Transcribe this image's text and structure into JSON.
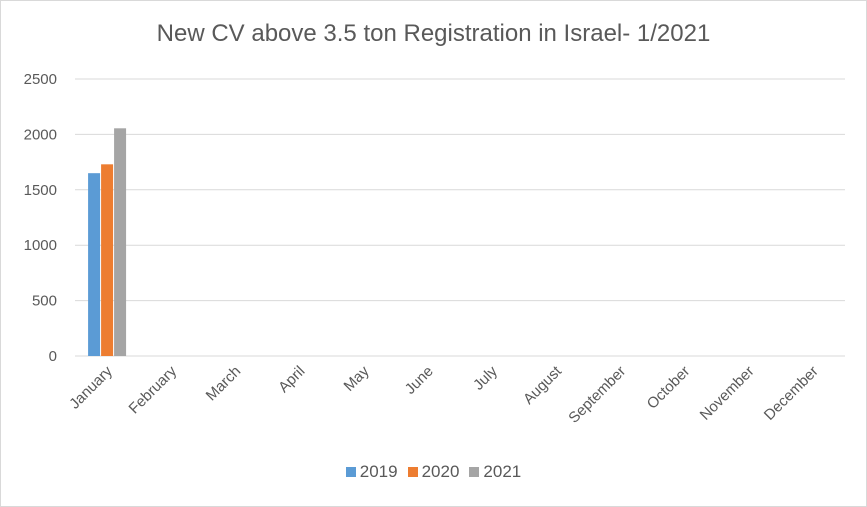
{
  "chart_data": {
    "type": "bar",
    "title": "New CV above 3.5 ton Registration in Israel- 1/2021",
    "xlabel": "",
    "ylabel": "",
    "categories": [
      "January",
      "February",
      "March",
      "April",
      "May",
      "June",
      "July",
      "August",
      "September",
      "October",
      "November",
      "December"
    ],
    "yticks": [
      "0",
      "500",
      "1000",
      "1500",
      "2000",
      "2500"
    ],
    "ylim": [
      0,
      2500
    ],
    "grid": true,
    "legend_position": "bottom",
    "series": [
      {
        "name": "2019",
        "color": "#5b9bd5",
        "values": [
          1650,
          null,
          null,
          null,
          null,
          null,
          null,
          null,
          null,
          null,
          null,
          null
        ]
      },
      {
        "name": "2020",
        "color": "#ed7d31",
        "values": [
          1730,
          null,
          null,
          null,
          null,
          null,
          null,
          null,
          null,
          null,
          null,
          null
        ]
      },
      {
        "name": "2021",
        "color": "#a5a5a5",
        "values": [
          2055,
          null,
          null,
          null,
          null,
          null,
          null,
          null,
          null,
          null,
          null,
          null
        ]
      }
    ]
  }
}
